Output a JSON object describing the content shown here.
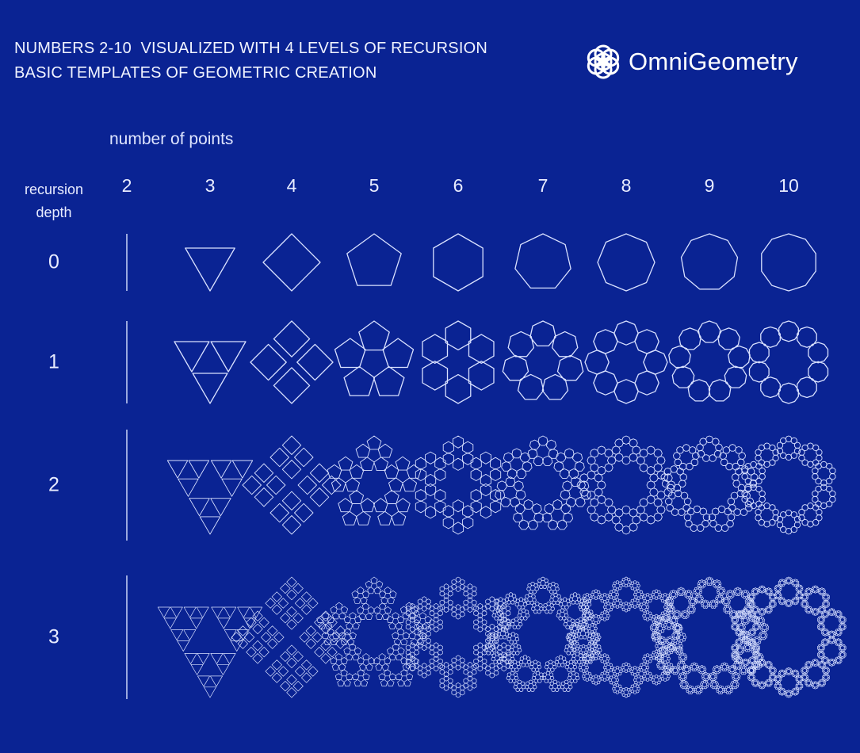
{
  "title": {
    "line1": "NUMBERS 2-10  VISUALIZED WITH 4 LEVELS OF RECURSION",
    "line2": "BASIC TEMPLATES OF GEOMETRIC CREATION"
  },
  "brand": {
    "name": "OmniGeometry",
    "logo_icon": "flower-of-life-logo-icon"
  },
  "axis": {
    "columns_label": "number of points",
    "rows_label_line1": "recursion",
    "rows_label_line2": "depth"
  },
  "columns": [
    "2",
    "3",
    "4",
    "5",
    "6",
    "7",
    "8",
    "9",
    "10"
  ],
  "rows": [
    "0",
    "1",
    "2",
    "3"
  ],
  "colors": {
    "background": "#0a2393",
    "line": "#d9e1ff",
    "text": "#e8ecff"
  }
}
